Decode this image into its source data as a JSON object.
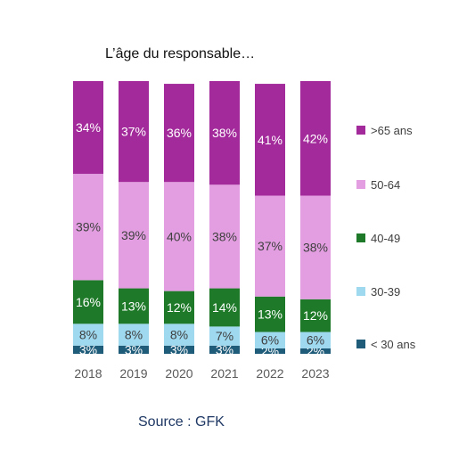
{
  "title": "L’âge du responsable…",
  "source": "Source : GFK",
  "colors": {
    "< 30 ans": "#1f5c7a",
    "30-39": "#9ed9f0",
    "40-49": "#1e7a28",
    "50-64": "#e29ee0",
    ">65 ans": "#a32a9b"
  },
  "chart_data": {
    "type": "bar",
    "stacked": true,
    "categories": [
      "2018",
      "2019",
      "2020",
      "2021",
      "2022",
      "2023"
    ],
    "series": [
      {
        "name": "< 30 ans",
        "values": [
          3,
          3,
          3,
          3,
          2,
          2
        ],
        "labels": [
          "3%",
          "3%",
          "3%",
          "3%",
          "2%",
          "2%"
        ]
      },
      {
        "name": "30-39",
        "values": [
          8,
          8,
          8,
          7,
          6,
          6
        ],
        "labels": [
          "8%",
          "8%",
          "8%",
          "7%",
          "6%",
          "6%"
        ]
      },
      {
        "name": "40-49",
        "values": [
          16,
          13,
          12,
          14,
          13,
          12
        ],
        "labels": [
          "16%",
          "13%",
          "12%",
          "14%",
          "13%",
          "12%"
        ]
      },
      {
        "name": "50-64",
        "values": [
          39,
          39,
          40,
          38,
          37,
          38
        ],
        "labels": [
          "39%",
          "39%",
          "40%",
          "38%",
          "37%",
          "38%"
        ]
      },
      {
        "name": ">65 ans",
        "values": [
          34,
          37,
          36,
          38,
          41,
          42
        ],
        "labels": [
          "34%",
          "37%",
          "36%",
          "38%",
          "41%",
          "42%"
        ]
      }
    ],
    "legend": {
      "position": "right",
      "order": [
        ">65 ans",
        "50-64",
        "40-49",
        "30-39",
        "< 30 ans"
      ]
    },
    "grid": false
  }
}
